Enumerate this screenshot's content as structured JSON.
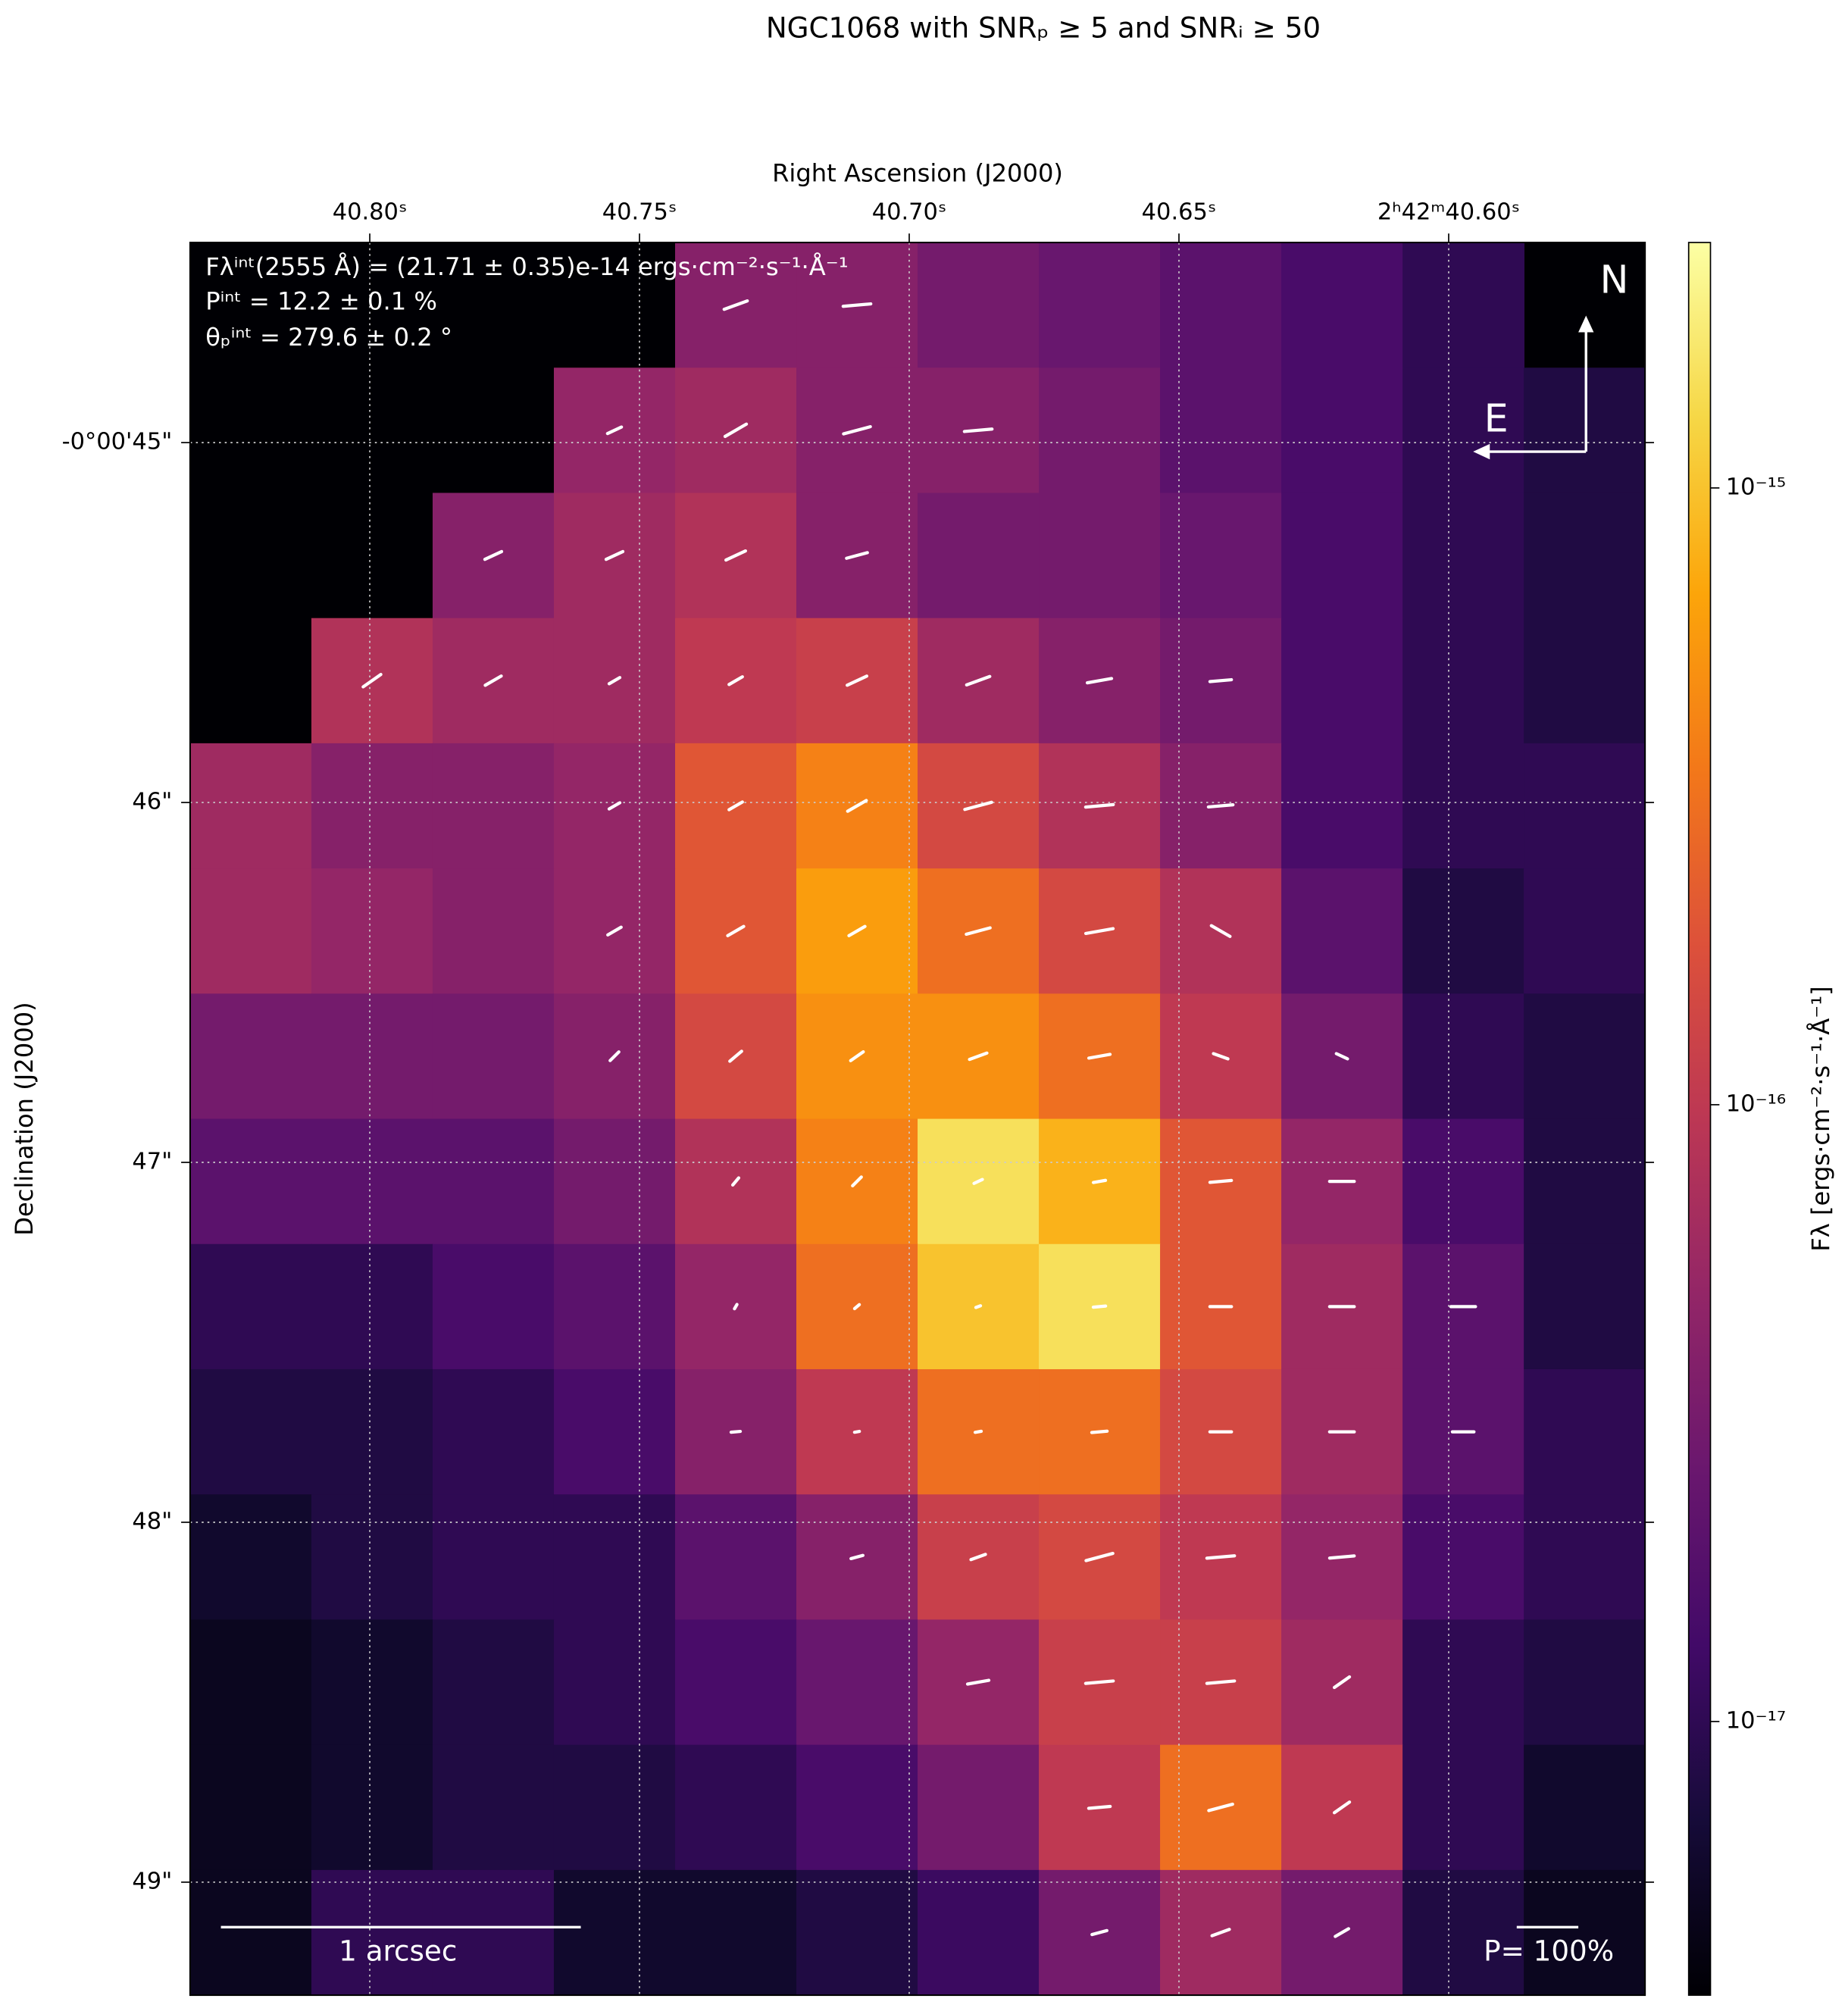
{
  "chart_data": {
    "type": "polarization_map",
    "title": "NGC1068 with SNRₚ ≥ 5 and SNRᵢ ≥ 50",
    "xlabel": "Right Ascension (J2000)",
    "ylabel": "Declination (J2000)",
    "colorbar_label": "Fλ [ergs·cm⁻²·s⁻¹·Å⁻¹]",
    "annotations": [
      "Fλⁱⁿᵗ(2555 Å) = (21.71 ± 0.35)e-14 ergs·cm⁻²·s⁻¹·Å⁻¹",
      "Pⁱⁿᵗ = 12.2 ± 0.1 %",
      "θₚⁱⁿᵗ = 279.6 ± 0.2 °"
    ],
    "xlim": [
      40.8333,
      40.5636
    ],
    "ylim": [
      49.314,
      44.444
    ],
    "xticks": [
      {
        "value": 40.8,
        "label": "40.80ˢ"
      },
      {
        "value": 40.75,
        "label": "40.75ˢ"
      },
      {
        "value": 40.7,
        "label": "40.70ˢ"
      },
      {
        "value": 40.65,
        "label": "40.65ˢ"
      },
      {
        "value": 40.6,
        "label": "2ʰ42ᵐ40.60ˢ"
      }
    ],
    "yticks": [
      {
        "value": 45,
        "label": "-0°00'45\""
      },
      {
        "value": 46,
        "label": "46\""
      },
      {
        "value": 47,
        "label": "47\""
      },
      {
        "value": 48,
        "label": "48\""
      },
      {
        "value": 49,
        "label": "49\""
      }
    ],
    "grid": true,
    "colormap": "inferno",
    "log_scale": true,
    "clim": [
      3.6e-18,
      2.5e-15
    ],
    "cticks": [
      {
        "value": 1e-15,
        "label": "10⁻¹⁵"
      },
      {
        "value": 1e-16,
        "label": "10⁻¹⁶"
      },
      {
        "value": 1e-17,
        "label": "10⁻¹⁷"
      }
    ],
    "image": [
      [
        null,
        null,
        null,
        null,
        4e-17,
        4e-17,
        3e-17,
        2.5e-17,
        2e-17,
        1.5e-17,
        1e-17,
        null
      ],
      [
        null,
        null,
        null,
        5e-17,
        6e-17,
        4e-17,
        4e-17,
        3e-17,
        2e-17,
        1.5e-17,
        1e-17,
        8e-18
      ],
      [
        null,
        null,
        4e-17,
        6e-17,
        8e-17,
        4e-17,
        3e-17,
        3e-17,
        2.5e-17,
        1.5e-17,
        1e-17,
        8e-18
      ],
      [
        null,
        8e-17,
        6e-17,
        6e-17,
        1e-16,
        1.2e-16,
        6e-17,
        4e-17,
        3e-17,
        1.5e-17,
        1e-17,
        8e-18
      ],
      [
        6e-17,
        4e-17,
        4e-17,
        5e-17,
        2e-16,
        4e-16,
        1.5e-16,
        8e-17,
        4e-17,
        1.5e-17,
        1e-17,
        1e-17
      ],
      [
        6e-17,
        5e-17,
        4e-17,
        5e-17,
        2e-16,
        6e-16,
        3e-16,
        1.5e-16,
        8e-17,
        2e-17,
        8e-18,
        1e-17
      ],
      [
        3e-17,
        3e-17,
        3e-17,
        4e-17,
        1.5e-16,
        5e-16,
        5e-16,
        3e-16,
        1e-16,
        3e-17,
        1e-17,
        8e-18
      ],
      [
        2e-17,
        2e-17,
        2e-17,
        3e-17,
        8e-17,
        4e-16,
        1.5e-15,
        8e-16,
        2e-16,
        5e-17,
        1.5e-17,
        8e-18
      ],
      [
        1e-17,
        1e-17,
        1.5e-17,
        2e-17,
        5e-17,
        3e-16,
        1e-15,
        1.5e-15,
        2e-16,
        6e-17,
        2e-17,
        8e-18
      ],
      [
        8e-18,
        8e-18,
        1e-17,
        1.5e-17,
        4e-17,
        1e-16,
        3e-16,
        3e-16,
        1.5e-16,
        6e-17,
        2e-17,
        1e-17
      ],
      [
        6e-18,
        8e-18,
        1e-17,
        1e-17,
        2e-17,
        4e-17,
        1.2e-16,
        1.5e-16,
        1e-16,
        5e-17,
        1.5e-17,
        1e-17
      ],
      [
        5e-18,
        6e-18,
        8e-18,
        1e-17,
        1.5e-17,
        2.5e-17,
        5e-17,
        1.2e-16,
        1.2e-16,
        6e-17,
        1e-17,
        8e-18
      ],
      [
        5e-18,
        6e-18,
        8e-18,
        8e-18,
        1e-17,
        1.5e-17,
        3e-17,
        1e-16,
        3e-16,
        1e-16,
        1e-17,
        6e-18
      ],
      [
        5e-18,
        1e-17,
        1e-17,
        6e-18,
        6e-18,
        8e-18,
        1.2e-17,
        3e-17,
        6e-17,
        3e-17,
        8e-18,
        5e-18
      ]
    ],
    "pol_angle": [
      [
        null,
        null,
        null,
        null,
        290,
        275,
        null,
        null,
        null,
        null,
        null,
        null
      ],
      [
        null,
        null,
        null,
        295,
        300,
        285,
        275,
        null,
        null,
        null,
        null,
        null
      ],
      [
        null,
        null,
        295,
        295,
        295,
        285,
        null,
        null,
        null,
        null,
        null,
        null
      ],
      [
        null,
        305,
        300,
        300,
        300,
        295,
        290,
        280,
        275,
        null,
        null,
        null
      ],
      [
        null,
        null,
        null,
        300,
        300,
        300,
        285,
        275,
        275,
        null,
        null,
        null
      ],
      [
        null,
        null,
        null,
        300,
        300,
        300,
        285,
        280,
        240,
        null,
        null,
        null
      ],
      [
        null,
        null,
        null,
        315,
        310,
        305,
        290,
        280,
        250,
        245,
        null,
        null
      ],
      [
        null,
        null,
        null,
        null,
        320,
        315,
        295,
        280,
        275,
        270,
        null,
        null
      ],
      [
        null,
        null,
        null,
        null,
        330,
        310,
        290,
        275,
        270,
        270,
        270,
        null
      ],
      [
        null,
        null,
        null,
        null,
        275,
        280,
        280,
        275,
        270,
        270,
        270,
        null
      ],
      [
        null,
        null,
        null,
        null,
        null,
        285,
        290,
        285,
        275,
        275,
        null,
        null
      ],
      [
        null,
        null,
        null,
        null,
        null,
        null,
        280,
        275,
        275,
        305,
        null,
        null
      ],
      [
        null,
        null,
        null,
        null,
        null,
        null,
        null,
        275,
        285,
        305,
        null,
        null
      ],
      [
        null,
        null,
        null,
        null,
        null,
        null,
        null,
        285,
        290,
        300,
        null,
        null
      ]
    ],
    "pol_degree": [
      [
        null,
        null,
        null,
        null,
        40,
        45,
        null,
        null,
        null,
        null,
        null,
        null
      ],
      [
        null,
        null,
        null,
        25,
        40,
        45,
        45,
        null,
        null,
        null,
        null,
        null
      ],
      [
        null,
        null,
        30,
        30,
        35,
        35,
        null,
        null,
        null,
        null,
        null,
        null
      ],
      [
        null,
        35,
        30,
        20,
        25,
        35,
        40,
        40,
        35,
        null,
        null,
        null
      ],
      [
        null,
        null,
        null,
        20,
        25,
        35,
        45,
        45,
        40,
        null,
        null,
        null
      ],
      [
        null,
        null,
        null,
        25,
        30,
        30,
        40,
        45,
        35,
        null,
        null,
        null
      ],
      [
        null,
        null,
        null,
        20,
        25,
        25,
        30,
        35,
        25,
        20,
        null,
        null
      ],
      [
        null,
        null,
        null,
        null,
        15,
        20,
        15,
        20,
        35,
        40,
        null,
        null
      ],
      [
        null,
        null,
        null,
        null,
        8,
        10,
        8,
        20,
        35,
        40,
        40,
        null
      ],
      [
        null,
        null,
        null,
        null,
        15,
        8,
        10,
        25,
        35,
        40,
        35,
        null
      ],
      [
        null,
        null,
        null,
        null,
        null,
        20,
        25,
        45,
        45,
        40,
        null,
        null
      ],
      [
        null,
        null,
        null,
        null,
        null,
        null,
        35,
        45,
        45,
        30,
        null,
        null
      ],
      [
        null,
        null,
        null,
        null,
        null,
        null,
        null,
        35,
        40,
        30,
        null,
        null
      ],
      [
        null,
        null,
        null,
        null,
        null,
        null,
        null,
        25,
        30,
        25,
        null,
        null
      ]
    ],
    "p_scale": {
      "value": 100,
      "label": "P= 100%"
    },
    "scale_bar": {
      "length": 1,
      "label": "1 arcsec"
    },
    "compass": {
      "north": "N",
      "east": "E"
    }
  }
}
